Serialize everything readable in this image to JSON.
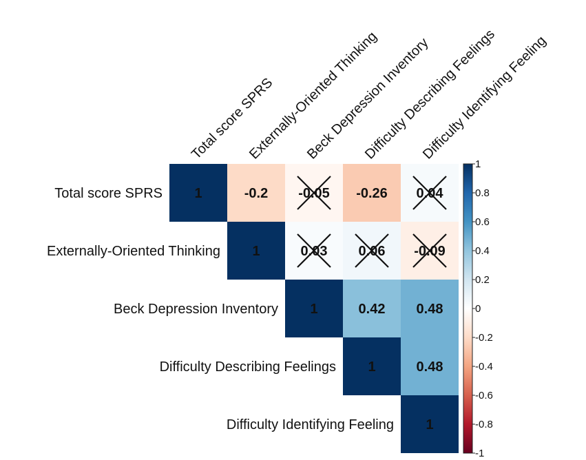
{
  "chart_data": {
    "type": "heatmap",
    "subtype": "correlation-upper-triangle",
    "title": "",
    "variables": [
      "Total score SPRS",
      "Externally-Oriented Thinking",
      "Beck Depression Inventory",
      "Difficulty Describing Feelings",
      "Difficulty Identifying Feeling"
    ],
    "matrix": [
      [
        1,
        -0.2,
        -0.05,
        -0.26,
        0.04
      ],
      [
        null,
        1,
        0.03,
        0.06,
        -0.09
      ],
      [
        null,
        null,
        1,
        0.42,
        0.48
      ],
      [
        null,
        null,
        null,
        1,
        0.48
      ],
      [
        null,
        null,
        null,
        null,
        1
      ]
    ],
    "labels": [
      [
        "1",
        "-0.2",
        "-0.05",
        "-0.26",
        "0.04"
      ],
      [
        null,
        "1",
        "0.03",
        "0.06",
        "-0.09"
      ],
      [
        null,
        null,
        "1",
        "0.42",
        "0.48"
      ],
      [
        null,
        null,
        null,
        "1",
        "0.48"
      ],
      [
        null,
        null,
        null,
        null,
        "1"
      ]
    ],
    "nonsignificant_crossed": [
      [
        false,
        false,
        true,
        false,
        true
      ],
      [
        null,
        false,
        true,
        true,
        true
      ],
      [
        null,
        null,
        false,
        false,
        false
      ],
      [
        null,
        null,
        null,
        false,
        false
      ],
      [
        null,
        null,
        null,
        null,
        false
      ]
    ],
    "colorbar": {
      "range": [
        -1,
        1
      ],
      "ticks": [
        "1",
        "0.8",
        "0.6",
        "0.4",
        "0.2",
        "0",
        "-0.2",
        "-0.4",
        "-0.6",
        "-0.8",
        "-1"
      ],
      "tick_values": [
        1,
        0.8,
        0.6,
        0.4,
        0.2,
        0,
        -0.2,
        -0.4,
        -0.6,
        -0.8,
        -1
      ],
      "palette": [
        "#67001F",
        "#B2182B",
        "#D6604D",
        "#F4A582",
        "#FDDBC7",
        "#FFFFFF",
        "#D1E5F0",
        "#92C5DE",
        "#4393C3",
        "#2166AC",
        "#053061"
      ],
      "placement": "right"
    }
  }
}
